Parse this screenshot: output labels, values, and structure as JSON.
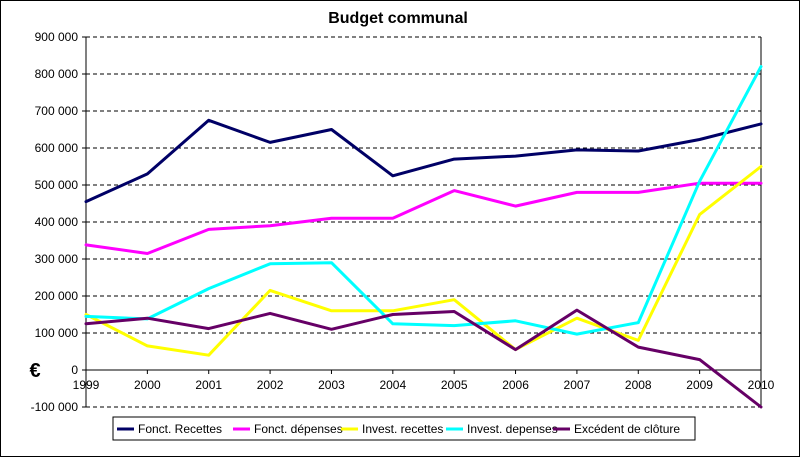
{
  "chart_data": {
    "type": "line",
    "title": "Budget communal",
    "xlabel": "",
    "ylabel": "€",
    "ylim": [
      -100000,
      900000
    ],
    "yticks": [
      -100000,
      0,
      100000,
      200000,
      300000,
      400000,
      500000,
      600000,
      700000,
      800000,
      900000
    ],
    "ytick_labels": [
      "-100 000",
      "0",
      "100 000",
      "200 000",
      "300 000",
      "400 000",
      "500 000",
      "600 000",
      "700 000",
      "800 000",
      "900 000"
    ],
    "categories": [
      "1999",
      "2000",
      "2001",
      "2002",
      "2003",
      "2004",
      "2005",
      "2006",
      "2007",
      "2008",
      "2009",
      "2010"
    ],
    "grid": true,
    "legend_position": "bottom",
    "series": [
      {
        "name": "Fonct. Recettes",
        "color": "#000066",
        "values": [
          455000,
          530000,
          675000,
          615000,
          650000,
          525000,
          570000,
          578000,
          595000,
          592000,
          623000,
          665000
        ]
      },
      {
        "name": "Fonct. dépenses",
        "color": "#ff00ff",
        "values": [
          338000,
          315000,
          380000,
          390000,
          410000,
          410000,
          485000,
          443000,
          480000,
          480000,
          505000,
          505000
        ]
      },
      {
        "name": "Invest. recettes",
        "color": "#ffff00",
        "values": [
          150000,
          65000,
          40000,
          215000,
          160000,
          160000,
          190000,
          55000,
          140000,
          80000,
          420000,
          550000
        ]
      },
      {
        "name": "Invest. depenses",
        "color": "#00ffff",
        "values": [
          145000,
          138000,
          220000,
          287000,
          290000,
          125000,
          120000,
          133000,
          97000,
          128000,
          510000,
          820000
        ]
      },
      {
        "name": "Excédent de clôture",
        "color": "#660066",
        "values": [
          125000,
          140000,
          112000,
          153000,
          110000,
          150000,
          158000,
          55000,
          162000,
          62000,
          28000,
          -100000
        ]
      }
    ]
  }
}
